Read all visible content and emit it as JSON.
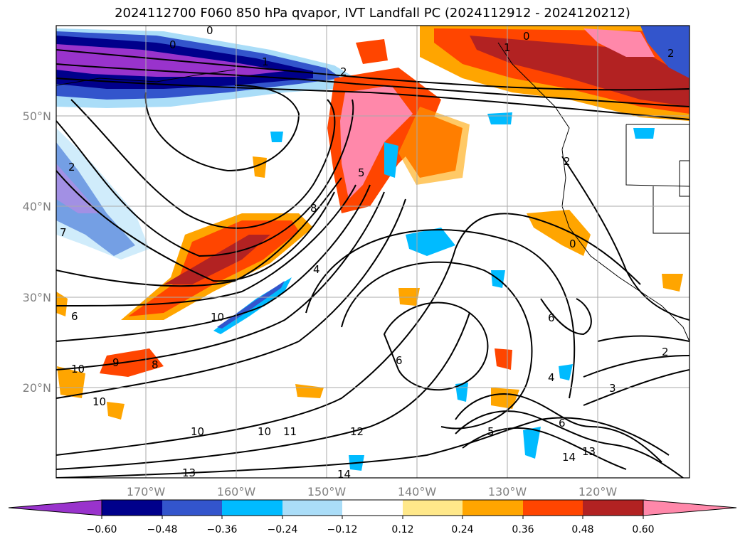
{
  "title": "2024112700 F060 850 hPa qvapor, IVT Landfall PC (2024112912 - 2024120212)",
  "map": {
    "lon_labels": [
      "170°W",
      "160°W",
      "150°W",
      "140°W",
      "130°W",
      "120°W"
    ],
    "lat_labels": [
      "50°N",
      "40°N",
      "30°N",
      "20°N"
    ],
    "contour_labels": [
      "0",
      "0",
      "0",
      "1",
      "1",
      "2",
      "2",
      "2",
      "2",
      "2",
      "3",
      "4",
      "5",
      "5",
      "6",
      "6",
      "6",
      "6",
      "8",
      "8",
      "9",
      "10",
      "10",
      "10",
      "10",
      "10",
      "11",
      "12",
      "13",
      "13",
      "14",
      "14",
      "0",
      "4",
      "7"
    ]
  },
  "colorbar": {
    "ticks": [
      "−0.60",
      "−0.48",
      "−0.36",
      "−0.24",
      "−0.12",
      "0.12",
      "0.24",
      "0.36",
      "0.48",
      "0.60"
    ],
    "colors": [
      "#9933cc",
      "#00008b",
      "#3355cc",
      "#00bbff",
      "#aaddf8",
      "#ffffff",
      "#ffe88a",
      "#ffa500",
      "#ff4500",
      "#b22222",
      "#ff88aa"
    ]
  },
  "legend": {
    "field": "850 hPa qvapor",
    "negative_color": "#00008b",
    "positive_color": "#b22222"
  }
}
